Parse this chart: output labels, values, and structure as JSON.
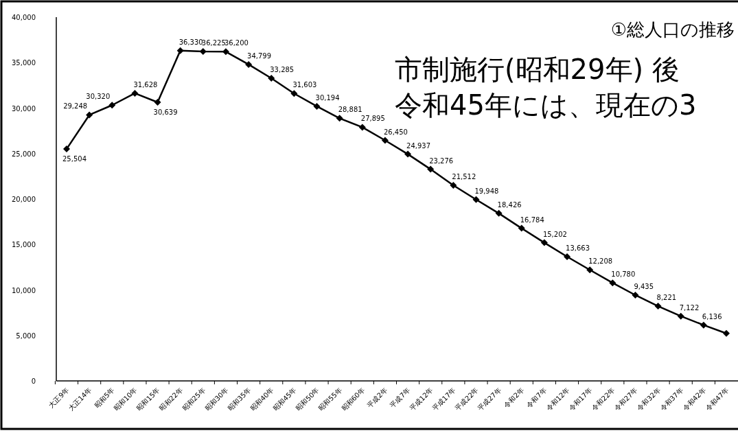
{
  "chart_data": {
    "type": "line",
    "title": "①総人口の推移",
    "annotations": [
      "市制施行(昭和29年) 後",
      "令和45年には、現在の3"
    ],
    "categories": [
      "大正9年",
      "大正14年",
      "昭和5年",
      "昭和10年",
      "昭和15年",
      "昭和22年",
      "昭和25年",
      "昭和30年",
      "昭和35年",
      "昭和40年",
      "昭和45年",
      "昭和50年",
      "昭和55年",
      "昭和60年",
      "平成2年",
      "平成7年",
      "平成12年",
      "平成17年",
      "平成22年",
      "平成27年",
      "令和2年",
      "令和7年",
      "令和12年",
      "令和17年",
      "令和22年",
      "令和27年",
      "令和32年",
      "令和37年",
      "令和42年",
      "令和47年"
    ],
    "series": [
      {
        "color": "#000000",
        "values": [
          25504,
          29248,
          30320,
          31628,
          30639,
          36330,
          36225,
          36200,
          34799,
          33285,
          31603,
          30194,
          28881,
          27895,
          26450,
          24937,
          23276,
          21512,
          19948,
          18426,
          16784,
          15202,
          13663,
          12208,
          10780,
          9435,
          8221,
          7122,
          6136,
          5230
        ],
        "value_labels": [
          "25,504",
          "29,248",
          "30,320",
          "31,628",
          "30,639",
          "36,330",
          "36,225",
          "36,200",
          "34,799",
          "33,285",
          "31,603",
          "30,194",
          "28,881",
          "27,895",
          "26,450",
          "24,937",
          "23,276",
          "21,512",
          "19,948",
          "18,426",
          "16,784",
          "15,202",
          "13,663",
          "12,208",
          "10,780",
          "9,435",
          "8,221",
          "7,122",
          "6,136",
          null
        ]
      }
    ],
    "ylim": [
      0,
      40000
    ],
    "yticks": [
      0,
      {
        "value": 5000,
        "label": "5,000"
      },
      {
        "value": 10000,
        "label": "10,000"
      },
      {
        "value": 15000,
        "label": "15,000"
      },
      {
        "value": 20000,
        "label": "20,000"
      },
      {
        "value": 25000,
        "label": "25,000"
      },
      {
        "value": 30000,
        "label": "30,000"
      },
      {
        "value": 35000,
        "label": "35,000"
      },
      {
        "value": 40000,
        "label": "40,000"
      }
    ],
    "marker": "diamond",
    "line_style": "solid",
    "grid": false
  }
}
